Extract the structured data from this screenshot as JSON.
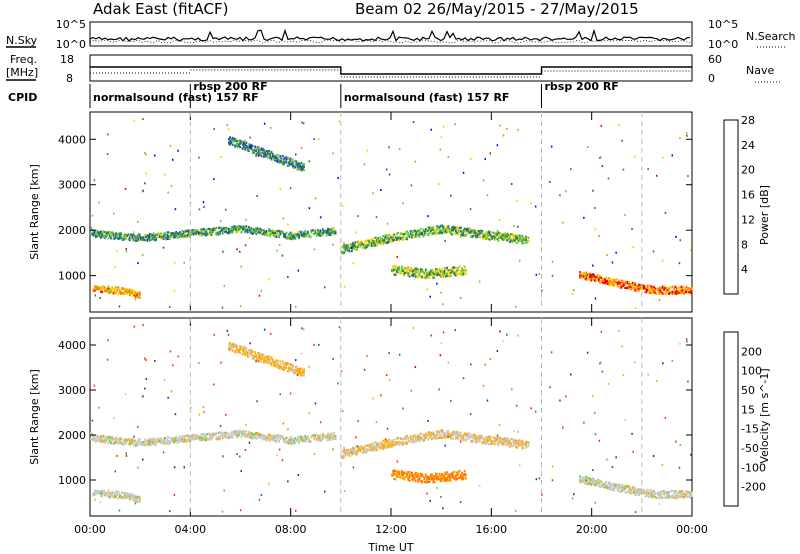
{
  "header": {
    "title_left": "Adak East (fitACF)",
    "title_right": "Beam 02 26/May/2015 - 27/May/2015"
  },
  "noise_panel": {
    "left_label": "N.Sky",
    "right_label": "N.Search",
    "left_ticks": [
      "10^5",
      "10^0"
    ],
    "right_ticks": [
      "10^5",
      "10^0"
    ]
  },
  "freq_panel": {
    "left_label_1": "Freq.",
    "left_label_2": "[MHz]",
    "left_ticks": [
      "18",
      "8"
    ],
    "right_ticks": [
      "60",
      "0"
    ],
    "right_label": "Nave"
  },
  "cpid_panel": {
    "label": "CPID",
    "segments": [
      {
        "label": "normalsound (fast) 157 RF",
        "start_hour": 0.0,
        "end_hour": 4.0
      },
      {
        "label": "rbsp 200 RF",
        "start_hour": 4.0,
        "end_hour": 10.0
      },
      {
        "label": "normalsound (fast) 157 RF",
        "start_hour": 10.0,
        "end_hour": 18.0
      },
      {
        "label": "rbsp 200 RF",
        "start_hour": 18.0,
        "end_hour": 22.0
      }
    ]
  },
  "x_axis": {
    "label": "Time UT",
    "ticks": [
      "00:00",
      "04:00",
      "08:00",
      "12:00",
      "16:00",
      "20:00",
      "00:00"
    ]
  },
  "y_axis": {
    "label": "Slant Range [km]",
    "ticks": [
      "1000",
      "2000",
      "3000",
      "4000"
    ]
  },
  "power_colorbar": {
    "label": "Power [dB]",
    "ticks": [
      "4",
      "8",
      "12",
      "16",
      "20",
      "24",
      "28"
    ],
    "colors": [
      "#0000ff",
      "#1f4fb8",
      "#2e7d4f",
      "#66cc33",
      "#ffcc00",
      "#ff8800",
      "#ee0000"
    ]
  },
  "velocity_colorbar": {
    "label": "Velocity [m s^-1]",
    "ticks": [
      "200",
      "100",
      "50",
      "15",
      "-15",
      "-50",
      "-100",
      "-200"
    ],
    "colors": [
      "#1a2fb0",
      "#1f6f6f",
      "#2e8b57",
      "#66cc33",
      "#c8c8c8",
      "#ffaa00",
      "#ff7700",
      "#ff3300",
      "#dd0000"
    ]
  },
  "chart_data": {
    "type": "heatmap",
    "x_range_hours": [
      0,
      24
    ],
    "y_range_km": [
      200,
      4600
    ],
    "grid": false,
    "panels": [
      "Power [dB]",
      "Velocity [m s^-1]"
    ],
    "bands": [
      {
        "name": "band-a",
        "start_hour": 0.0,
        "end_hour": 9.8,
        "range_km": [
          [
            0.1,
            1950
          ],
          [
            2,
            1850
          ],
          [
            4,
            1950
          ],
          [
            6,
            2050
          ],
          [
            8,
            1900
          ],
          [
            9.8,
            2000
          ]
        ],
        "thickness_km": 150,
        "power_db": 12,
        "velocity": 0
      },
      {
        "name": "band-b",
        "start_hour": 10.0,
        "end_hour": 17.5,
        "range_km": [
          [
            10,
            1600
          ],
          [
            12,
            1850
          ],
          [
            14,
            2050
          ],
          [
            16,
            1900
          ],
          [
            17.5,
            1800
          ]
        ],
        "thickness_km": 180,
        "power_db": 14,
        "velocity": -10
      },
      {
        "name": "band-c",
        "start_hour": 12.0,
        "end_hour": 15.0,
        "range_km": [
          [
            12,
            1150
          ],
          [
            13.5,
            1050
          ],
          [
            15,
            1150
          ]
        ],
        "thickness_km": 200,
        "power_db": 16,
        "velocity": -60
      },
      {
        "name": "band-d",
        "start_hour": 5.5,
        "end_hour": 8.5,
        "range_km": [
          [
            5.5,
            4000
          ],
          [
            7,
            3700
          ],
          [
            8.5,
            3400
          ]
        ],
        "thickness_km": 180,
        "power_db": 10,
        "velocity": -20
      },
      {
        "name": "band-e",
        "start_hour": 0.1,
        "end_hour": 2.0,
        "range_km": [
          [
            0.1,
            750
          ],
          [
            1,
            700
          ],
          [
            2,
            600
          ]
        ],
        "thickness_km": 150,
        "power_db": 22,
        "velocity": 0
      },
      {
        "name": "band-f",
        "start_hour": 19.5,
        "end_hour": 24.0,
        "range_km": [
          [
            19.5,
            1050
          ],
          [
            21,
            850
          ],
          [
            22.5,
            700
          ],
          [
            24,
            700
          ]
        ],
        "thickness_km": 160,
        "power_db": 24,
        "velocity": 0
      }
    ]
  }
}
